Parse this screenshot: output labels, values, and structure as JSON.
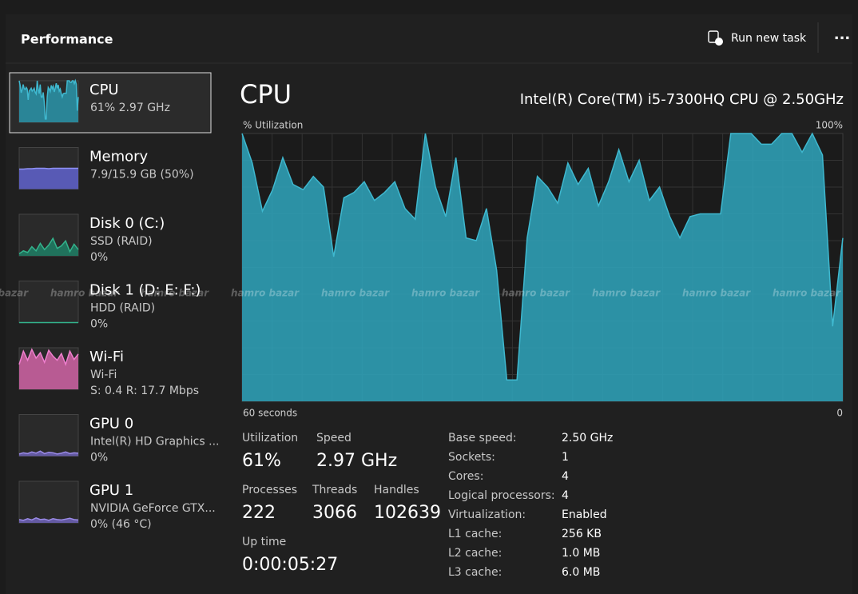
{
  "header": {
    "title": "Performance",
    "run_new_task": "Run new task",
    "more": "..."
  },
  "watermark": "hamro bazar",
  "sidebar": [
    {
      "name": "CPU",
      "line2": "61% 2.97 GHz",
      "color": "#3fb8cf",
      "fill": "#2a8fa3",
      "graph": [
        100,
        89,
        71,
        79,
        91,
        81,
        79,
        84,
        80,
        54,
        76,
        78,
        82,
        75,
        78,
        82,
        72,
        68,
        100,
        80,
        69,
        91,
        61,
        60,
        72,
        49,
        8,
        8,
        61,
        84,
        80,
        74,
        89,
        81,
        87,
        73,
        82,
        94,
        82,
        90,
        75,
        80,
        69,
        61,
        69,
        70,
        70,
        70,
        100,
        100,
        100,
        96,
        96,
        100,
        100,
        93,
        100,
        92,
        28,
        61
      ]
    },
    {
      "name": "Memory",
      "line2": "7.9/15.9 GB (50%)",
      "color": "#8f91f5",
      "fill": "#5d5fc4",
      "graph": [
        48,
        48,
        49,
        49,
        50,
        50,
        50,
        49,
        50,
        50,
        50,
        50,
        50,
        50,
        50
      ]
    },
    {
      "name": "Disk 0 (C:)",
      "line2": "SSD (RAID)",
      "line3": "0%",
      "color": "#33b38c",
      "fill": "#1f7a62",
      "graph": [
        5,
        12,
        8,
        22,
        12,
        30,
        15,
        26,
        42,
        18,
        24,
        36,
        10,
        28,
        15
      ]
    },
    {
      "name": "Disk 1 (D: E: F:)",
      "line2": "HDD (RAID)",
      "line3": "0%",
      "color": "#33b38c",
      "fill": "#1f7a62",
      "graph": [
        0,
        0,
        0,
        0,
        0,
        0,
        0,
        0,
        0,
        0,
        0,
        0,
        0,
        0,
        0
      ]
    },
    {
      "name": "Wi-Fi",
      "line2": "Wi-Fi",
      "line3": "S: 0.4 R: 17.7 Mbps",
      "color": "#f07fcf",
      "fill": "#c8609f",
      "graph": [
        60,
        92,
        70,
        96,
        75,
        88,
        65,
        94,
        80,
        70,
        86,
        60,
        92,
        72,
        85
      ]
    },
    {
      "name": "GPU 0",
      "line2": "Intel(R) HD Graphics ...",
      "line3": "0%",
      "color": "#9a8ae6",
      "fill": "#6a5fb0",
      "graph": [
        5,
        8,
        6,
        10,
        7,
        12,
        6,
        9,
        8,
        5,
        7,
        10,
        6,
        8,
        7
      ]
    },
    {
      "name": "GPU 1",
      "line2": "NVIDIA GeForce GTX...",
      "line3": "0% (46 °C)",
      "color": "#9a8ae6",
      "fill": "#6a5fb0",
      "graph": [
        8,
        6,
        10,
        7,
        12,
        8,
        9,
        6,
        10,
        8,
        7,
        9,
        11,
        8,
        7
      ]
    }
  ],
  "main": {
    "title": "CPU",
    "model": "Intel(R) Core(TM) i5-7300HQ CPU @ 2.50GHz",
    "y_label": "% Utilization",
    "y_max_label": "100%",
    "x_start_label": "60 seconds",
    "x_end_label": "0",
    "chart_data": {
      "type": "area",
      "ylim": [
        0,
        100
      ],
      "color": "#3fb8cf",
      "fill": "#2f9fb5"
    },
    "stats": [
      {
        "label": "Utilization",
        "value": "61%"
      },
      {
        "label": "Speed",
        "value": "2.97 GHz"
      },
      {
        "label": "Processes",
        "value": "222"
      },
      {
        "label": "Threads",
        "value": "3066"
      },
      {
        "label": "Handles",
        "value": "102639"
      },
      {
        "label": "Up time",
        "value": "0:00:05:27"
      }
    ],
    "details": [
      [
        "Base speed:",
        "2.50 GHz"
      ],
      [
        "Sockets:",
        "1"
      ],
      [
        "Cores:",
        "4"
      ],
      [
        "Logical processors:",
        "4"
      ],
      [
        "Virtualization:",
        "Enabled"
      ],
      [
        "L1 cache:",
        "256 KB"
      ],
      [
        "L2 cache:",
        "1.0 MB"
      ],
      [
        "L3 cache:",
        "6.0 MB"
      ]
    ]
  }
}
